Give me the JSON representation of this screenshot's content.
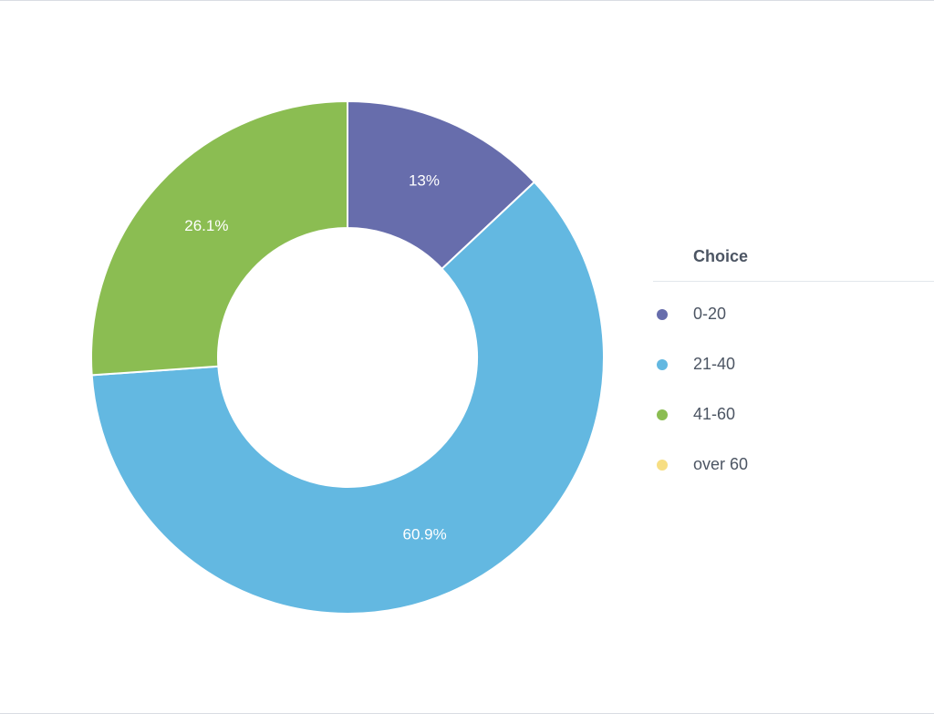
{
  "chart_data": {
    "type": "pie",
    "donut": true,
    "legend_title": "Choice",
    "legend_position": "right",
    "categories": [
      "0-20",
      "21-40",
      "41-60",
      "over 60"
    ],
    "values": [
      13,
      60.9,
      26.1,
      0
    ],
    "labels": [
      "13%",
      "60.9%",
      "26.1%",
      ""
    ],
    "colors": [
      "#676DAC",
      "#63B8E1",
      "#8BBD52",
      "#F7DE83"
    ]
  }
}
